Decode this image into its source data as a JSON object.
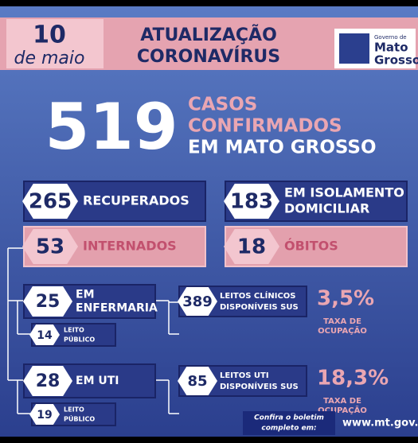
{
  "header": {
    "day": "10",
    "month": "de maio",
    "title": [
      "ATUALIZAÇÃO",
      "CORONAVÍRUS"
    ],
    "logo": {
      "small": "Governo de",
      "lines": [
        "Mato",
        "Grosso"
      ]
    }
  },
  "headline": {
    "number": "519",
    "lines": [
      "CASOS",
      "CONFIRMADOS",
      "EM MATO GROSSO"
    ]
  },
  "stats": [
    {
      "number": "265",
      "label": [
        "RECUPERADOS"
      ]
    },
    {
      "number": "183",
      "label": [
        "EM ISOLAMENTO",
        "DOMICILIAR"
      ]
    },
    {
      "number": "53",
      "label": [
        "INTERNADOS"
      ]
    },
    {
      "number": "18",
      "label": [
        "ÓBITOS"
      ]
    }
  ],
  "wards": [
    {
      "number": "25",
      "label": [
        "EM",
        "ENFERMARIA"
      ],
      "public": {
        "number": "14",
        "label": [
          "LEITO",
          "PÚBLICO"
        ]
      },
      "beds": {
        "number": "389",
        "label": [
          "LEITOS CLÍNICOS",
          "DISPONÍVEIS SUS"
        ]
      },
      "rate": {
        "value": "3,5%",
        "label": [
          "TAXA DE",
          "OCUPAÇÃO"
        ]
      }
    },
    {
      "number": "28",
      "label": [
        "EM UTI"
      ],
      "public": {
        "number": "19",
        "label": [
          "LEITO",
          "PÚBLICO"
        ]
      },
      "beds": {
        "number": "85",
        "label": [
          "LEITOS UTI",
          "DISPONÍVEIS SUS"
        ]
      },
      "rate": {
        "value": "18,3%",
        "label": [
          "TAXA DE",
          "OCUPAÇÃO"
        ]
      }
    }
  ],
  "footer": {
    "note": [
      "Confira o boletim",
      "completo em:"
    ],
    "url": "www.mt.gov.br"
  }
}
